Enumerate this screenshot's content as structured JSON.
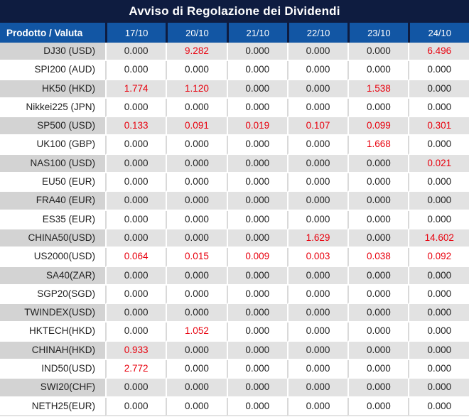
{
  "title": "Avviso di Regolazione dei Dividendi",
  "colors": {
    "title-bg": "#0e1c40",
    "header-bg": "#1256a4",
    "header-divider": "#0e1c40",
    "row-gray": "#e2e2e2",
    "row-gray-product": "#d3d3d3",
    "white-row-divider": "#d9d9d9",
    "value-black": "#212121",
    "value-red": "#e8000d"
  },
  "table": {
    "product_header": "Prodotto / Valuta",
    "date_headers": [
      "17/10",
      "20/10",
      "21/10",
      "22/10",
      "23/10",
      "24/10"
    ],
    "rows": [
      {
        "product": "DJ30 (USD)",
        "values": [
          "0.000",
          "9.282",
          "0.000",
          "0.000",
          "0.000",
          "6.496"
        ],
        "red": [
          false,
          true,
          false,
          false,
          false,
          true
        ]
      },
      {
        "product": "SPI200 (AUD)",
        "values": [
          "0.000",
          "0.000",
          "0.000",
          "0.000",
          "0.000",
          "0.000"
        ],
        "red": [
          false,
          false,
          false,
          false,
          false,
          false
        ]
      },
      {
        "product": "HK50 (HKD)",
        "values": [
          "1.774",
          "1.120",
          "0.000",
          "0.000",
          "1.538",
          "0.000"
        ],
        "red": [
          true,
          true,
          false,
          false,
          true,
          false
        ]
      },
      {
        "product": "Nikkei225 (JPN)",
        "values": [
          "0.000",
          "0.000",
          "0.000",
          "0.000",
          "0.000",
          "0.000"
        ],
        "red": [
          false,
          false,
          false,
          false,
          false,
          false
        ]
      },
      {
        "product": "SP500 (USD)",
        "values": [
          "0.133",
          "0.091",
          "0.019",
          "0.107",
          "0.099",
          "0.301"
        ],
        "red": [
          true,
          true,
          true,
          true,
          true,
          true
        ]
      },
      {
        "product": "UK100 (GBP)",
        "values": [
          "0.000",
          "0.000",
          "0.000",
          "0.000",
          "1.668",
          "0.000"
        ],
        "red": [
          false,
          false,
          false,
          false,
          true,
          false
        ]
      },
      {
        "product": "NAS100 (USD)",
        "values": [
          "0.000",
          "0.000",
          "0.000",
          "0.000",
          "0.000",
          "0.021"
        ],
        "red": [
          false,
          false,
          false,
          false,
          false,
          true
        ]
      },
      {
        "product": "EU50 (EUR)",
        "values": [
          "0.000",
          "0.000",
          "0.000",
          "0.000",
          "0.000",
          "0.000"
        ],
        "red": [
          false,
          false,
          false,
          false,
          false,
          false
        ]
      },
      {
        "product": "FRA40 (EUR)",
        "values": [
          "0.000",
          "0.000",
          "0.000",
          "0.000",
          "0.000",
          "0.000"
        ],
        "red": [
          false,
          false,
          false,
          false,
          false,
          false
        ]
      },
      {
        "product": "ES35 (EUR)",
        "values": [
          "0.000",
          "0.000",
          "0.000",
          "0.000",
          "0.000",
          "0.000"
        ],
        "red": [
          false,
          false,
          false,
          false,
          false,
          false
        ]
      },
      {
        "product": "CHINA50(USD)",
        "values": [
          "0.000",
          "0.000",
          "0.000",
          "1.629",
          "0.000",
          "14.602"
        ],
        "red": [
          false,
          false,
          false,
          true,
          false,
          true
        ]
      },
      {
        "product": "US2000(USD)",
        "values": [
          "0.064",
          "0.015",
          "0.009",
          "0.003",
          "0.038",
          "0.092"
        ],
        "red": [
          true,
          true,
          true,
          true,
          true,
          true
        ]
      },
      {
        "product": "SA40(ZAR)",
        "values": [
          "0.000",
          "0.000",
          "0.000",
          "0.000",
          "0.000",
          "0.000"
        ],
        "red": [
          false,
          false,
          false,
          false,
          false,
          false
        ]
      },
      {
        "product": "SGP20(SGD)",
        "values": [
          "0.000",
          "0.000",
          "0.000",
          "0.000",
          "0.000",
          "0.000"
        ],
        "red": [
          false,
          false,
          false,
          false,
          false,
          false
        ]
      },
      {
        "product": "TWINDEX(USD)",
        "values": [
          "0.000",
          "0.000",
          "0.000",
          "0.000",
          "0.000",
          "0.000"
        ],
        "red": [
          false,
          false,
          false,
          false,
          false,
          false
        ]
      },
      {
        "product": "HKTECH(HKD)",
        "values": [
          "0.000",
          "1.052",
          "0.000",
          "0.000",
          "0.000",
          "0.000"
        ],
        "red": [
          false,
          true,
          false,
          false,
          false,
          false
        ]
      },
      {
        "product": "CHINAH(HKD)",
        "values": [
          "0.933",
          "0.000",
          "0.000",
          "0.000",
          "0.000",
          "0.000"
        ],
        "red": [
          true,
          false,
          false,
          false,
          false,
          false
        ]
      },
      {
        "product": "IND50(USD)",
        "values": [
          "2.772",
          "0.000",
          "0.000",
          "0.000",
          "0.000",
          "0.000"
        ],
        "red": [
          true,
          false,
          false,
          false,
          false,
          false
        ]
      },
      {
        "product": "SWI20(CHF)",
        "values": [
          "0.000",
          "0.000",
          "0.000",
          "0.000",
          "0.000",
          "0.000"
        ],
        "red": [
          false,
          false,
          false,
          false,
          false,
          false
        ]
      },
      {
        "product": "NETH25(EUR)",
        "values": [
          "0.000",
          "0.000",
          "0.000",
          "0.000",
          "0.000",
          "0.000"
        ],
        "red": [
          false,
          false,
          false,
          false,
          false,
          false
        ]
      }
    ]
  }
}
